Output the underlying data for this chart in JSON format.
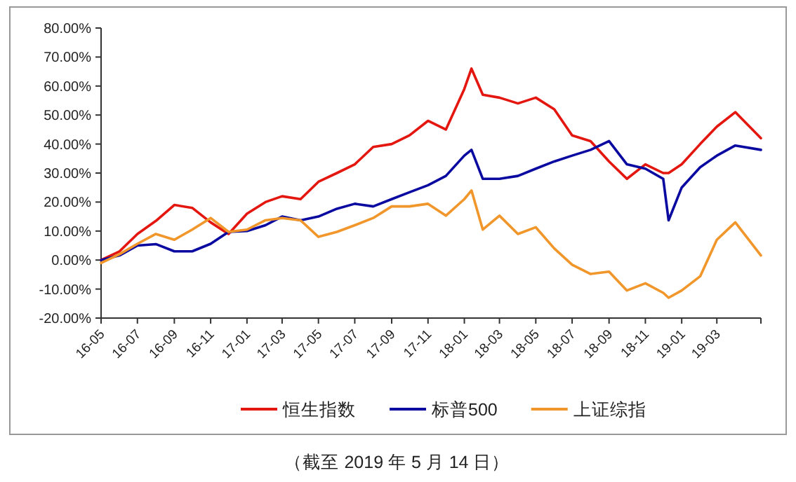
{
  "chart_data": {
    "type": "line",
    "x": [
      "2016-05-01",
      "2016-06-01",
      "2016-07-01",
      "2016-08-01",
      "2016-09-01",
      "2016-10-01",
      "2016-11-01",
      "2016-12-01",
      "2017-01-01",
      "2017-02-01",
      "2017-03-01",
      "2017-04-01",
      "2017-05-01",
      "2017-06-01",
      "2017-07-01",
      "2017-08-01",
      "2017-09-01",
      "2017-10-01",
      "2017-11-01",
      "2017-12-01",
      "2018-01-01",
      "2018-01-13",
      "2018-02-01",
      "2018-03-01",
      "2018-04-01",
      "2018-05-01",
      "2018-06-01",
      "2018-07-01",
      "2018-08-01",
      "2018-09-01",
      "2018-10-01",
      "2018-11-01",
      "2018-12-01",
      "2018-12-10",
      "2019-01-01",
      "2019-02-01",
      "2019-03-01",
      "2019-04-01",
      "2019-05-14"
    ],
    "series": [
      {
        "name": "恒生指数",
        "color": "#e3170f",
        "values": [
          0,
          3,
          9,
          13.5,
          19,
          18,
          13,
          9,
          16,
          20,
          22,
          21,
          27,
          30,
          33,
          39,
          40,
          43,
          48,
          45,
          59,
          66,
          57,
          56,
          54,
          56,
          52,
          43,
          41,
          34,
          28,
          33,
          30,
          30,
          33,
          40,
          46,
          51,
          42
        ]
      },
      {
        "name": "标普500",
        "color": "#0a0aa0",
        "values": [
          0,
          1.6,
          5,
          5.5,
          3,
          3,
          5.6,
          9.7,
          10,
          12,
          15,
          13.7,
          15,
          17.7,
          19.4,
          18.5,
          21,
          23.4,
          25.8,
          29,
          36,
          38,
          28,
          28,
          29,
          31.5,
          34,
          36,
          38,
          41,
          33,
          31.5,
          28,
          13.7,
          25,
          32,
          36,
          39.5,
          38
        ]
      },
      {
        "name": "上证综指",
        "color": "#f0962a",
        "values": [
          -1,
          2,
          5.6,
          9,
          7,
          10.5,
          14.5,
          9.7,
          10.5,
          13.7,
          14.5,
          13.7,
          8,
          9.7,
          12,
          14.5,
          18.5,
          18.5,
          19.4,
          15.3,
          21,
          24,
          10.5,
          15.3,
          9,
          11.3,
          4,
          -1.6,
          -4.8,
          -4,
          -10.5,
          -8,
          -11.3,
          -13,
          -10.5,
          -5.6,
          7,
          13,
          1.6
        ]
      }
    ],
    "xlim": [
      "2016-05-01",
      "2019-05-14"
    ],
    "xticks": [
      {
        "value": "2016-05-01",
        "label": "16-05"
      },
      {
        "value": "2016-07-01",
        "label": "16-07"
      },
      {
        "value": "2016-09-01",
        "label": "16-09"
      },
      {
        "value": "2016-11-01",
        "label": "16-11"
      },
      {
        "value": "2017-01-01",
        "label": "17-01"
      },
      {
        "value": "2017-03-01",
        "label": "17-03"
      },
      {
        "value": "2017-05-01",
        "label": "17-05"
      },
      {
        "value": "2017-07-01",
        "label": "17-07"
      },
      {
        "value": "2017-09-01",
        "label": "17-09"
      },
      {
        "value": "2017-11-01",
        "label": "17-11"
      },
      {
        "value": "2018-01-01",
        "label": "18-01"
      },
      {
        "value": "2018-03-01",
        "label": "18-03"
      },
      {
        "value": "2018-05-01",
        "label": "18-05"
      },
      {
        "value": "2018-07-01",
        "label": "18-07"
      },
      {
        "value": "2018-09-01",
        "label": "18-09"
      },
      {
        "value": "2018-11-01",
        "label": "18-11"
      },
      {
        "value": "2019-01-01",
        "label": "19-01"
      },
      {
        "value": "2019-03-01",
        "label": "19-03"
      }
    ],
    "ylim": [
      -20,
      80
    ],
    "yticks": [
      {
        "value": -20,
        "label": "-20.00%"
      },
      {
        "value": -10,
        "label": "-10.00%"
      },
      {
        "value": 0,
        "label": "0.00%"
      },
      {
        "value": 10,
        "label": "10.00%"
      },
      {
        "value": 20,
        "label": "20.00%"
      },
      {
        "value": 30,
        "label": "30.00%"
      },
      {
        "value": 40,
        "label": "40.00%"
      },
      {
        "value": 50,
        "label": "50.00%"
      },
      {
        "value": 60,
        "label": "60.00%"
      },
      {
        "value": 70,
        "label": "70.00%"
      },
      {
        "value": 80,
        "label": "80.00%"
      }
    ],
    "grid": false,
    "legend": "bottom",
    "annotations": [
      "（截至 2019 年 5 月 14 日）"
    ]
  }
}
